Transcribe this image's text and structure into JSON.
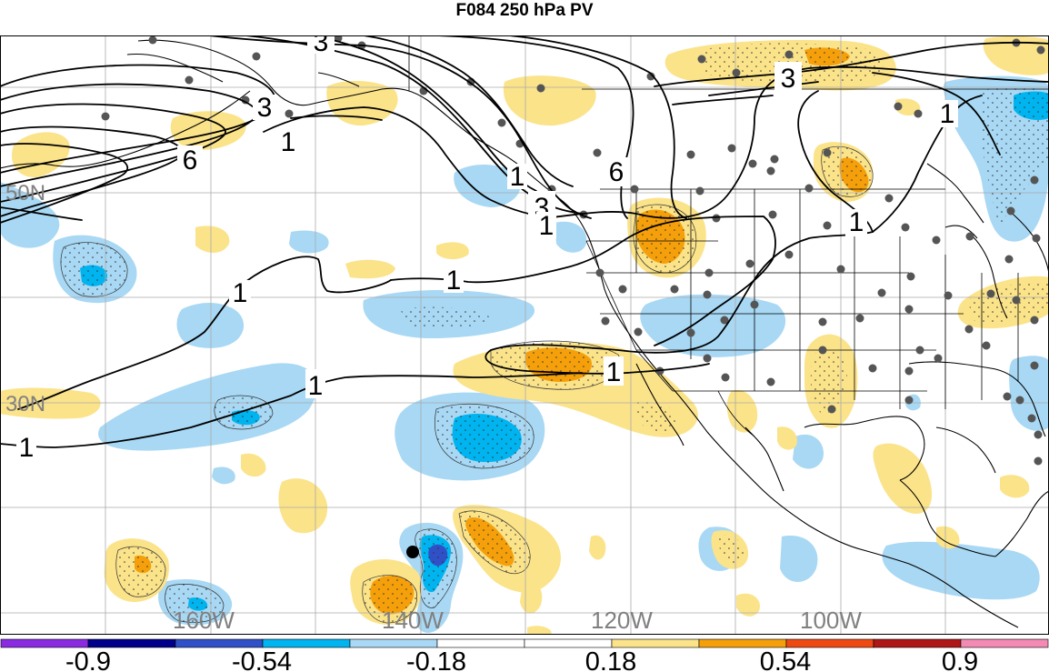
{
  "title": "F084 250 hPa PV",
  "map": {
    "projection": "cylindrical",
    "lat_labels": [
      "50N",
      "30N"
    ],
    "lon_labels": [
      "160W",
      "140W",
      "120W",
      "100W"
    ],
    "contour_labels": [
      "3",
      "6",
      "3",
      "1",
      "1",
      "6",
      "3",
      "1",
      "1",
      "1",
      "3",
      "1",
      "1",
      "1",
      "1",
      "1"
    ],
    "marker": "black dot"
  },
  "colorbar": {
    "colors": [
      "#8a2be2",
      "#00008b",
      "#3050c8",
      "#00b4f0",
      "#a8d8f4",
      "#ffffff",
      "#ffffff",
      "#fbe38a",
      "#f5a00a",
      "#f04a14",
      "#b01818",
      "#f28ab4"
    ],
    "labels": [
      "-0.9",
      "-0.54",
      "-0.18",
      "0.18",
      "0.54",
      "0.9"
    ]
  }
}
